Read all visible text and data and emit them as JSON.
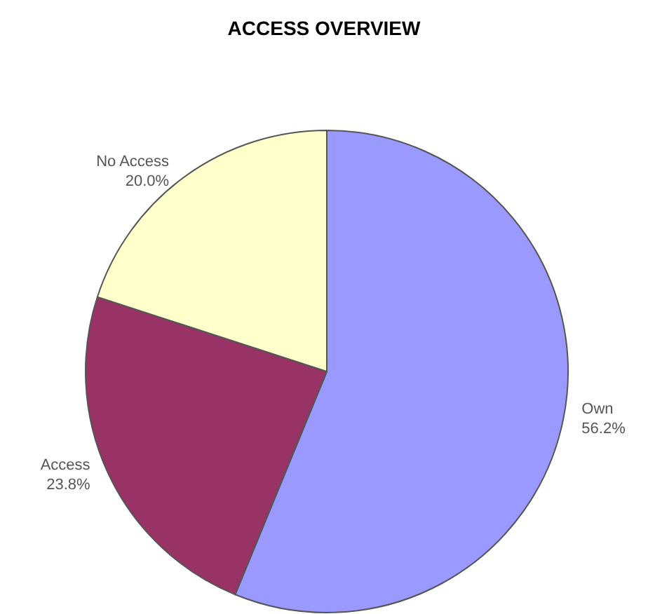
{
  "chart_data": {
    "type": "pie",
    "title": "ACCESS OVERVIEW",
    "categories": [
      "Own",
      "Access",
      "No Access"
    ],
    "values": [
      56.2,
      23.8,
      20.0
    ],
    "value_labels": [
      "56.2%",
      "23.8%",
      "20.0%"
    ],
    "colors": [
      "#9999ff",
      "#993366",
      "#ffffcc"
    ],
    "legend": false
  }
}
